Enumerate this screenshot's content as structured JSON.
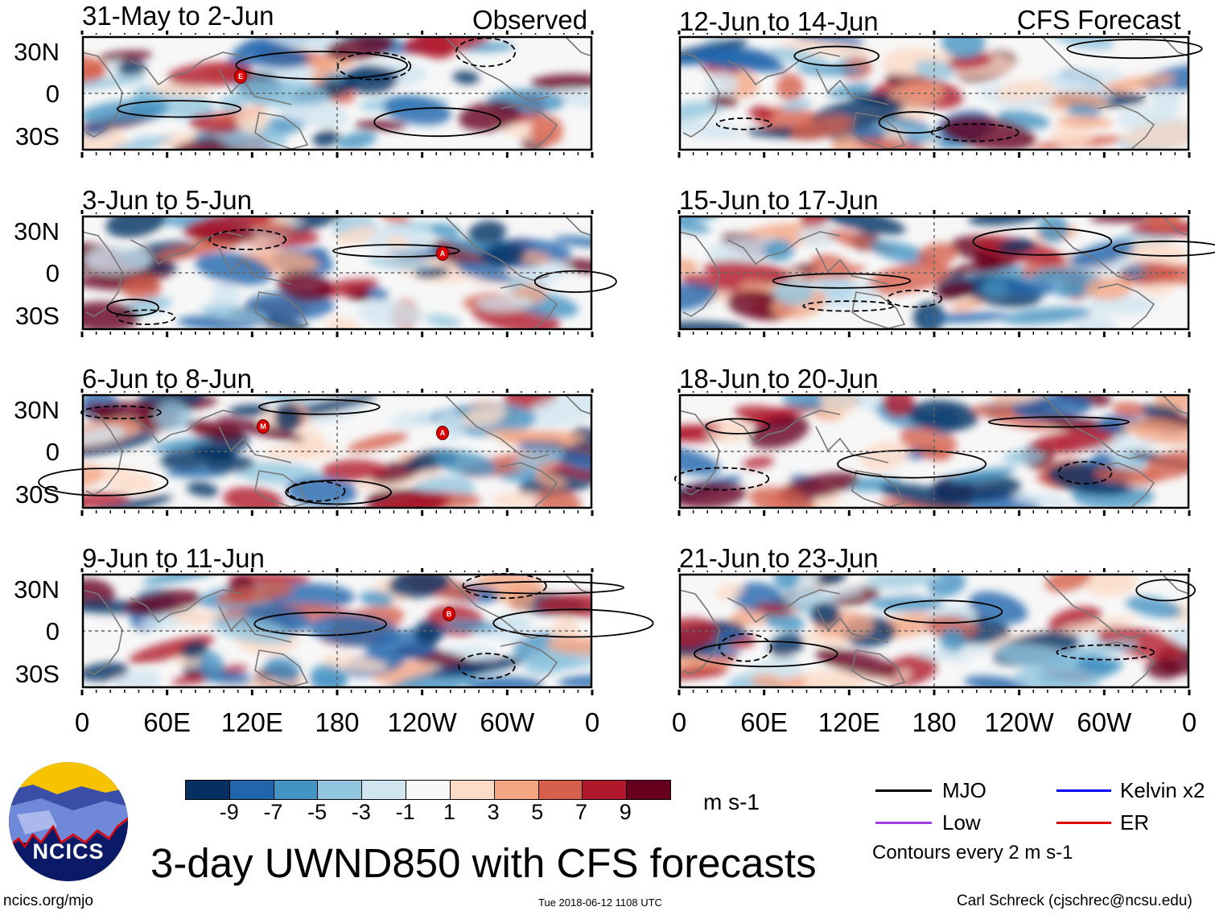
{
  "left_header": {
    "label": "Observed"
  },
  "right_header": {
    "label": "CFS Forecast"
  },
  "panels": [
    {
      "title": "31-May to 2-Jun",
      "group": "observed",
      "storms": [
        "E"
      ]
    },
    {
      "title": "3-Jun to 5-Jun",
      "group": "observed",
      "storms": [
        "A"
      ]
    },
    {
      "title": "6-Jun to 8-Jun",
      "group": "observed",
      "storms": [
        "M",
        "A"
      ]
    },
    {
      "title": "9-Jun to 11-Jun",
      "group": "observed",
      "storms": [
        "B"
      ]
    },
    {
      "title": "12-Jun to 14-Jun",
      "group": "forecast",
      "storms": []
    },
    {
      "title": "15-Jun to 17-Jun",
      "group": "forecast",
      "storms": []
    },
    {
      "title": "18-Jun to 20-Jun",
      "group": "forecast",
      "storms": []
    },
    {
      "title": "21-Jun to 23-Jun",
      "group": "forecast",
      "storms": []
    }
  ],
  "lat_labels": [
    "30N",
    "0",
    "30S"
  ],
  "lon_labels": [
    "0",
    "60E",
    "120E",
    "180",
    "120W",
    "60W",
    "0"
  ],
  "colorbar": {
    "colors": [
      "#053061",
      "#2166ac",
      "#4393c3",
      "#92c5de",
      "#d1e5f0",
      "#f7f7f7",
      "#fddbc7",
      "#f4a582",
      "#d6604d",
      "#b2182b",
      "#67001f"
    ],
    "labels": [
      "-9",
      "-7",
      "-5",
      "-3",
      "-1",
      "1",
      "3",
      "5",
      "7",
      "9"
    ],
    "units": "m s-1"
  },
  "legend": {
    "items": [
      {
        "label": "MJO",
        "color": "#000000"
      },
      {
        "label": "Kelvin x2",
        "color": "#0000ff"
      },
      {
        "label": "Low",
        "color": "#a040e0"
      },
      {
        "label": "ER",
        "color": "#e00000"
      }
    ],
    "note": "Contours every 2 m s-1"
  },
  "logo": {
    "text": "NCICS"
  },
  "title": "3-day UWND850 with CFS forecasts",
  "footer": {
    "left": "ncics.org/mjo",
    "center": "Tue 2018-06-12 1108 UTC",
    "right": "Carl Schreck (cjschrec@ncsu.edu)"
  }
}
